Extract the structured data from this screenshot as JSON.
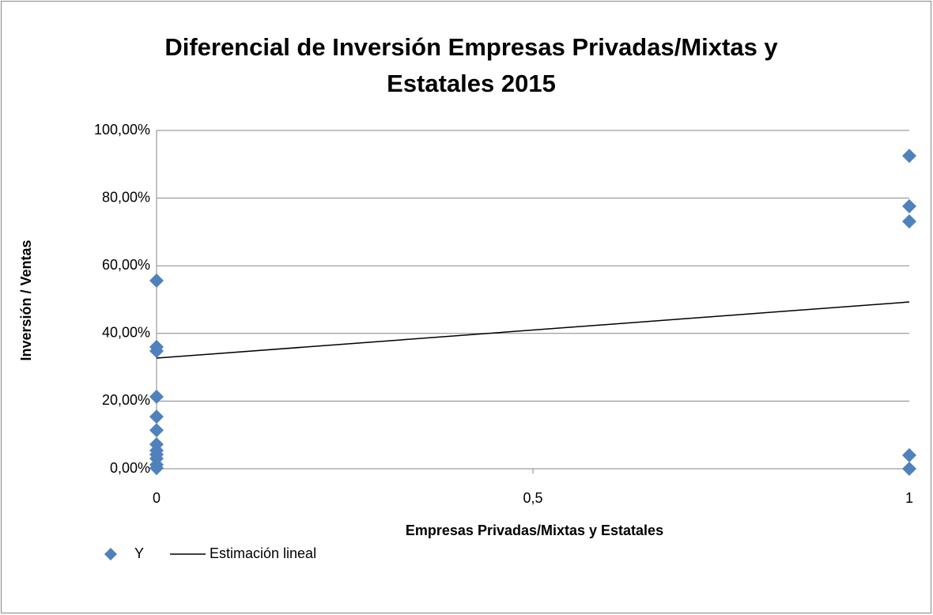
{
  "chart_data": {
    "type": "scatter",
    "title": [
      "Diferencial de Inversión Empresas Privadas/Mixtas y",
      "Estatales 2015"
    ],
    "xlabel": "Empresas Privadas/Mixtas y Estatales",
    "ylabel": "Inversión / Ventas",
    "xlim": [
      0,
      1
    ],
    "xticks": [
      0,
      {
        "value": 0.5,
        "label": "0,5"
      },
      1
    ],
    "ylim": [
      0,
      100
    ],
    "yticks": [
      {
        "value": 0,
        "label": "0,00%"
      },
      {
        "value": 20,
        "label": "20,00%"
      },
      {
        "value": 40,
        "label": "40,00%"
      },
      {
        "value": 60,
        "label": "60,00%"
      },
      {
        "value": 80,
        "label": "80,00%"
      },
      {
        "value": 100,
        "label": "100,00%"
      }
    ],
    "grid": true,
    "legend": "bottom-left",
    "series": [
      {
        "name": "Y",
        "color": "#4f81bd",
        "marker": "diamond",
        "x": [
          0,
          0,
          0,
          0,
          0,
          0,
          0,
          0,
          0,
          0,
          0,
          0,
          1,
          1,
          1,
          1,
          1
        ],
        "values": [
          55.6,
          36.0,
          34.8,
          21.3,
          15.4,
          11.4,
          7.2,
          5.4,
          4.2,
          3.0,
          1.2,
          0.2,
          92.5,
          77.6,
          73.1,
          4.0,
          0
        ]
      },
      {
        "name": "Estimación lineal",
        "color": "#000000",
        "marker": "line",
        "x": [
          0,
          1
        ],
        "values": [
          32.7,
          49.3
        ]
      }
    ]
  }
}
